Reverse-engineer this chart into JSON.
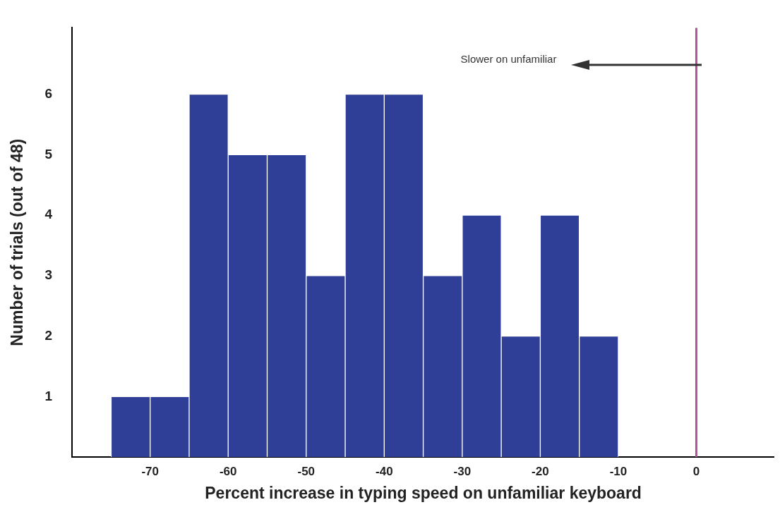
{
  "chart_data": {
    "type": "histogram",
    "xlabel": "Percent increase in typing speed on unfamiliar keyboard",
    "ylabel": "Number of trials (out of 48)",
    "bins": [
      -75,
      -70,
      -65,
      -60,
      -55,
      -50,
      -45,
      -40,
      -35,
      -30,
      -25,
      -20,
      -15,
      -10
    ],
    "values": [
      1,
      1,
      6,
      5,
      5,
      3,
      6,
      6,
      3,
      4,
      2,
      4,
      2
    ],
    "color": "#2f3e96",
    "xlim": [
      -80,
      10
    ],
    "xticks": [
      -70,
      -60,
      -50,
      -40,
      -30,
      -20,
      -10,
      0
    ],
    "ylim": [
      0,
      7.1
    ],
    "yticks": [
      1,
      2,
      3,
      4,
      5,
      6
    ],
    "grid": false,
    "legend": false,
    "ref_lines": [
      {
        "axis": "x",
        "value": 0,
        "color": "#b4509e"
      }
    ],
    "annotations": [
      "Slower on unfamiliar"
    ]
  }
}
